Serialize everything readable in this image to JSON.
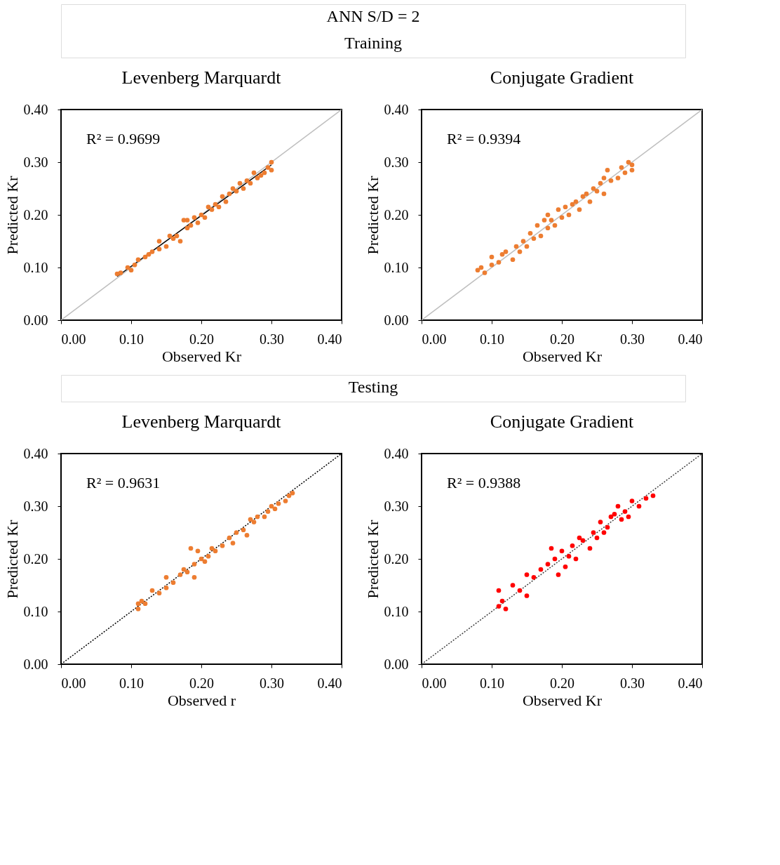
{
  "chart_data": [
    {
      "type": "other",
      "title": "ANN S/D = 2",
      "subtitle": "Training"
    },
    {
      "type": "scatter",
      "title": "Levenberg Marquardt",
      "xlabel": "Observed Kr",
      "ylabel": "Predicted Kr",
      "annotations": [
        "R² = 0.9699"
      ],
      "xlim": [
        0,
        0.4
      ],
      "ylim": [
        0,
        0.4
      ],
      "xticks": [
        {
          "value": 0,
          "label": "0.00"
        },
        {
          "value": 0.1,
          "label": "0.10"
        },
        {
          "value": 0.2,
          "label": "0.20"
        },
        {
          "value": 0.3,
          "label": "0.30"
        },
        {
          "value": 0.4,
          "label": "0.40"
        }
      ],
      "yticks": [
        {
          "value": 0,
          "label": "0.00"
        },
        {
          "value": 0.1,
          "label": "0.10"
        },
        {
          "value": 0.2,
          "label": "0.20"
        },
        {
          "value": 0.3,
          "label": "0.30"
        },
        {
          "value": 0.4,
          "label": "0.40"
        }
      ],
      "series": [
        {
          "type": "scatter",
          "marker": "circle",
          "color": "#ed7d31",
          "x": [
            0.08,
            0.085,
            0.095,
            0.1,
            0.105,
            0.11,
            0.12,
            0.125,
            0.13,
            0.14,
            0.14,
            0.15,
            0.155,
            0.16,
            0.165,
            0.17,
            0.175,
            0.18,
            0.18,
            0.185,
            0.19,
            0.195,
            0.2,
            0.205,
            0.21,
            0.215,
            0.22,
            0.225,
            0.23,
            0.235,
            0.24,
            0.245,
            0.25,
            0.255,
            0.26,
            0.265,
            0.27,
            0.275,
            0.28,
            0.285,
            0.29,
            0.295,
            0.3,
            0.3
          ],
          "values": [
            0.088,
            0.09,
            0.1,
            0.095,
            0.105,
            0.115,
            0.12,
            0.125,
            0.13,
            0.15,
            0.135,
            0.14,
            0.16,
            0.155,
            0.16,
            0.15,
            0.19,
            0.175,
            0.19,
            0.18,
            0.195,
            0.185,
            0.2,
            0.195,
            0.215,
            0.21,
            0.22,
            0.215,
            0.235,
            0.225,
            0.24,
            0.25,
            0.245,
            0.26,
            0.25,
            0.265,
            0.26,
            0.28,
            0.27,
            0.275,
            0.28,
            0.29,
            0.3,
            0.285
          ]
        },
        {
          "type": "line",
          "color": "#bfbfbf",
          "line_style": "solid",
          "x": [
            0,
            0.4
          ],
          "values": [
            0,
            0.4
          ]
        },
        {
          "type": "line",
          "color": "#000000",
          "line_style": "solid",
          "x": [
            0.08,
            0.3
          ],
          "values": [
            0.083,
            0.295
          ]
        }
      ]
    },
    {
      "type": "scatter",
      "title": "Conjugate Gradient",
      "xlabel": "Observed Kr",
      "ylabel": "Predicted Kr",
      "annotations": [
        "R² = 0.9394"
      ],
      "xlim": [
        0,
        0.4
      ],
      "ylim": [
        0,
        0.4
      ],
      "xticks": [
        {
          "value": 0,
          "label": "0.00"
        },
        {
          "value": 0.1,
          "label": "0.10"
        },
        {
          "value": 0.2,
          "label": "0.20"
        },
        {
          "value": 0.3,
          "label": "0.30"
        },
        {
          "value": 0.4,
          "label": "0.40"
        }
      ],
      "yticks": [
        {
          "value": 0,
          "label": "0.00"
        },
        {
          "value": 0.1,
          "label": "0.10"
        },
        {
          "value": 0.2,
          "label": "0.20"
        },
        {
          "value": 0.3,
          "label": "0.30"
        },
        {
          "value": 0.4,
          "label": "0.40"
        }
      ],
      "series": [
        {
          "type": "scatter",
          "marker": "circle",
          "color": "#ed7d31",
          "x": [
            0.08,
            0.085,
            0.09,
            0.1,
            0.1,
            0.11,
            0.115,
            0.12,
            0.13,
            0.135,
            0.14,
            0.145,
            0.15,
            0.155,
            0.16,
            0.165,
            0.17,
            0.175,
            0.18,
            0.18,
            0.185,
            0.19,
            0.195,
            0.2,
            0.205,
            0.21,
            0.215,
            0.22,
            0.225,
            0.23,
            0.235,
            0.24,
            0.245,
            0.25,
            0.255,
            0.26,
            0.26,
            0.265,
            0.27,
            0.28,
            0.285,
            0.29,
            0.295,
            0.3,
            0.3
          ],
          "values": [
            0.095,
            0.1,
            0.09,
            0.105,
            0.12,
            0.11,
            0.125,
            0.13,
            0.115,
            0.14,
            0.13,
            0.15,
            0.14,
            0.165,
            0.155,
            0.18,
            0.16,
            0.19,
            0.175,
            0.2,
            0.19,
            0.18,
            0.21,
            0.195,
            0.215,
            0.2,
            0.22,
            0.225,
            0.21,
            0.235,
            0.24,
            0.225,
            0.25,
            0.245,
            0.26,
            0.27,
            0.24,
            0.285,
            0.265,
            0.27,
            0.29,
            0.28,
            0.3,
            0.295,
            0.285
          ]
        },
        {
          "type": "line",
          "color": "#bfbfbf",
          "line_style": "solid",
          "x": [
            0,
            0.4
          ],
          "values": [
            0,
            0.4
          ]
        }
      ]
    },
    {
      "type": "other",
      "title": "Testing"
    },
    {
      "type": "scatter",
      "title": "Levenberg Marquardt",
      "xlabel": "Observed r",
      "ylabel": "Predicted Kr",
      "annotations": [
        "R² = 0.9631"
      ],
      "xlim": [
        0,
        0.4
      ],
      "ylim": [
        0,
        0.4
      ],
      "xticks": [
        {
          "value": 0,
          "label": "0.00"
        },
        {
          "value": 0.1,
          "label": "0.10"
        },
        {
          "value": 0.2,
          "label": "0.20"
        },
        {
          "value": 0.3,
          "label": "0.30"
        },
        {
          "value": 0.4,
          "label": "0.40"
        }
      ],
      "yticks": [
        {
          "value": 0,
          "label": "0.00"
        },
        {
          "value": 0.1,
          "label": "0.10"
        },
        {
          "value": 0.2,
          "label": "0.20"
        },
        {
          "value": 0.3,
          "label": "0.30"
        },
        {
          "value": 0.4,
          "label": "0.40"
        }
      ],
      "series": [
        {
          "type": "scatter",
          "marker": "circle",
          "color": "#ed7d31",
          "x": [
            0.11,
            0.11,
            0.115,
            0.12,
            0.13,
            0.14,
            0.15,
            0.15,
            0.16,
            0.17,
            0.175,
            0.18,
            0.185,
            0.19,
            0.19,
            0.195,
            0.2,
            0.205,
            0.21,
            0.215,
            0.22,
            0.23,
            0.24,
            0.245,
            0.25,
            0.26,
            0.265,
            0.27,
            0.275,
            0.28,
            0.29,
            0.295,
            0.3,
            0.305,
            0.31,
            0.32,
            0.325,
            0.33
          ],
          "values": [
            0.105,
            0.115,
            0.12,
            0.115,
            0.14,
            0.135,
            0.145,
            0.165,
            0.155,
            0.17,
            0.18,
            0.175,
            0.22,
            0.165,
            0.19,
            0.215,
            0.2,
            0.195,
            0.205,
            0.22,
            0.215,
            0.225,
            0.24,
            0.23,
            0.25,
            0.255,
            0.245,
            0.275,
            0.27,
            0.28,
            0.28,
            0.29,
            0.3,
            0.295,
            0.305,
            0.31,
            0.32,
            0.325
          ]
        },
        {
          "type": "line",
          "color": "#000000",
          "line_style": "dotted",
          "x": [
            0,
            0.4
          ],
          "values": [
            0,
            0.4
          ]
        }
      ]
    },
    {
      "type": "scatter",
      "title": "Conjugate Gradient",
      "xlabel": "Observed Kr",
      "ylabel": "Predicted Kr",
      "annotations": [
        "R² = 0.9388"
      ],
      "xlim": [
        0,
        0.4
      ],
      "ylim": [
        0,
        0.4
      ],
      "xticks": [
        {
          "value": 0,
          "label": "0.00"
        },
        {
          "value": 0.1,
          "label": "0.10"
        },
        {
          "value": 0.2,
          "label": "0.20"
        },
        {
          "value": 0.3,
          "label": "0.30"
        },
        {
          "value": 0.4,
          "label": "0.40"
        }
      ],
      "yticks": [
        {
          "value": 0,
          "label": "0.00"
        },
        {
          "value": 0.1,
          "label": "0.10"
        },
        {
          "value": 0.2,
          "label": "0.20"
        },
        {
          "value": 0.3,
          "label": "0.30"
        },
        {
          "value": 0.4,
          "label": "0.40"
        }
      ],
      "series": [
        {
          "type": "scatter",
          "marker": "circle",
          "color": "#ff0000",
          "x": [
            0.11,
            0.11,
            0.115,
            0.12,
            0.13,
            0.14,
            0.15,
            0.15,
            0.16,
            0.17,
            0.18,
            0.185,
            0.19,
            0.195,
            0.2,
            0.205,
            0.21,
            0.215,
            0.22,
            0.225,
            0.23,
            0.24,
            0.245,
            0.25,
            0.255,
            0.26,
            0.265,
            0.27,
            0.275,
            0.28,
            0.285,
            0.29,
            0.295,
            0.3,
            0.31,
            0.32,
            0.33
          ],
          "values": [
            0.11,
            0.14,
            0.12,
            0.105,
            0.15,
            0.14,
            0.13,
            0.17,
            0.165,
            0.18,
            0.19,
            0.22,
            0.2,
            0.17,
            0.215,
            0.185,
            0.205,
            0.225,
            0.2,
            0.24,
            0.235,
            0.22,
            0.25,
            0.24,
            0.27,
            0.25,
            0.26,
            0.28,
            0.285,
            0.3,
            0.275,
            0.29,
            0.28,
            0.31,
            0.3,
            0.315,
            0.32
          ]
        },
        {
          "type": "line",
          "color": "#404040",
          "line_style": "dotted",
          "x": [
            0,
            0.4
          ],
          "values": [
            0,
            0.4
          ]
        }
      ]
    }
  ]
}
